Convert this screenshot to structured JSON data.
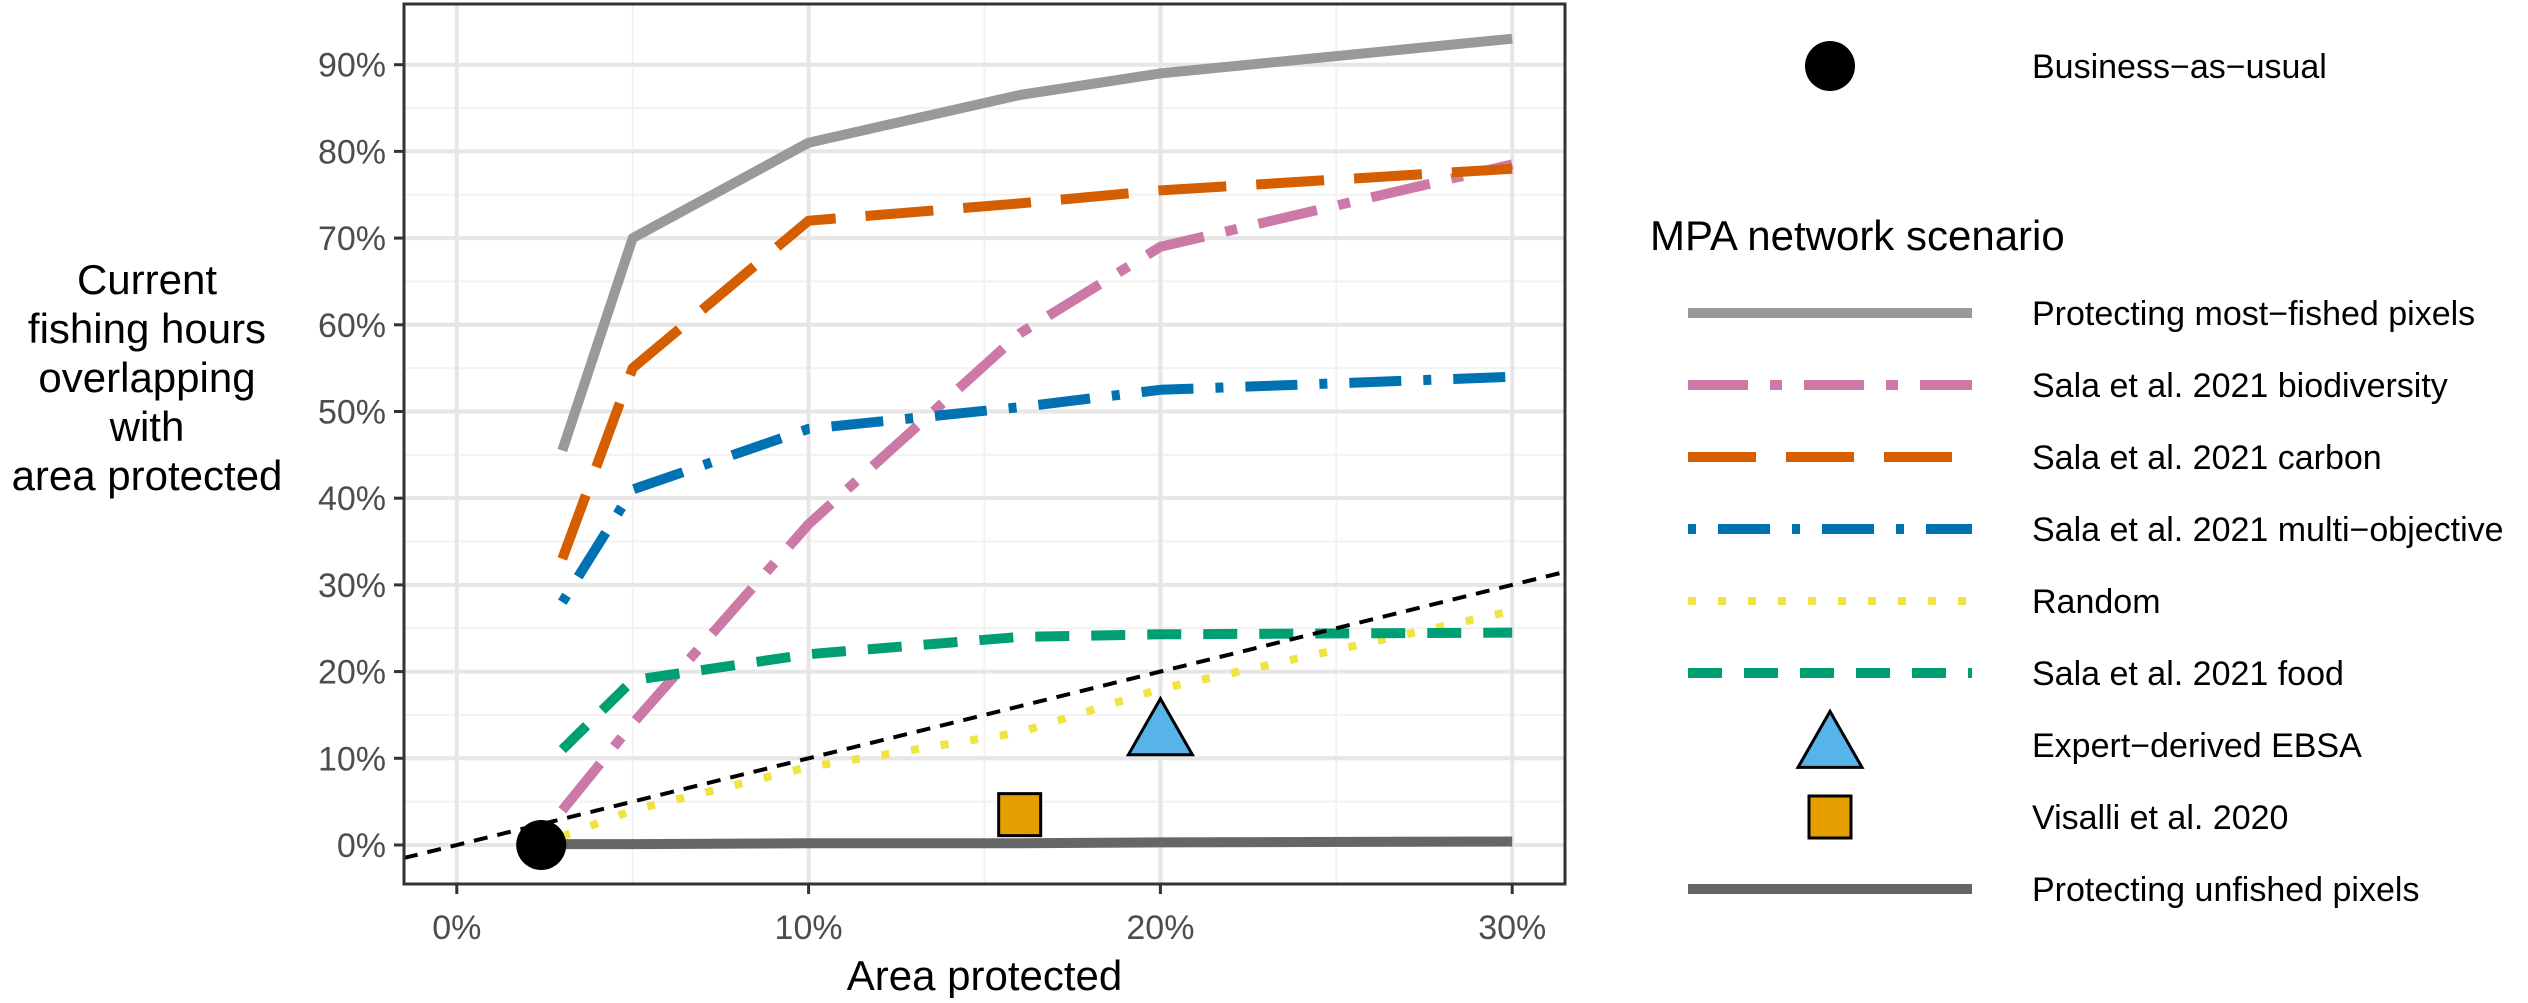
{
  "chart_data": {
    "type": "line",
    "xlabel": "Area protected",
    "ylabel_lines": [
      "Current",
      "fishing hours",
      "overlapping",
      "with",
      "area protected"
    ],
    "xlim": [
      -1.5,
      31.5
    ],
    "ylim": [
      -4.5,
      97
    ],
    "x_ticks": [
      0,
      10,
      20,
      30
    ],
    "x_tick_labels": [
      "0%",
      "10%",
      "20%",
      "30%"
    ],
    "y_ticks": [
      0,
      10,
      20,
      30,
      40,
      50,
      60,
      70,
      80,
      90
    ],
    "y_tick_labels": [
      "0%",
      "10%",
      "20%",
      "30%",
      "40%",
      "50%",
      "60%",
      "70%",
      "80%",
      "90%"
    ],
    "grid": true,
    "legend_title": "MPA network scenario",
    "legend_position": "right",
    "series": [
      {
        "name": "Protecting most−fished pixels",
        "color": "#999999",
        "dash": "solid",
        "x": [
          3,
          5,
          10,
          16,
          20,
          30
        ],
        "y": [
          45.5,
          70,
          81,
          86.5,
          89,
          93
        ]
      },
      {
        "name": "Sala et al. 2021 biodiversity",
        "color": "#CC79A7",
        "dash": "dashdot",
        "x": [
          3,
          5,
          10,
          16,
          20,
          30
        ],
        "y": [
          4,
          14,
          37,
          59,
          69,
          78.5
        ]
      },
      {
        "name": "Sala et al. 2021 carbon",
        "color": "#D55E00",
        "dash": "longdash",
        "x": [
          3,
          5,
          10,
          16,
          20,
          30
        ],
        "y": [
          33,
          55,
          72,
          74,
          75.5,
          78
        ]
      },
      {
        "name": "Sala et al. 2021 multi−objective",
        "color": "#0072B2",
        "dash": "dotdash",
        "x": [
          3,
          5,
          10,
          16,
          20,
          30
        ],
        "y": [
          28,
          41,
          48,
          50.5,
          52.5,
          54
        ]
      },
      {
        "name": "Random",
        "color": "#F0E442",
        "dash": "dotted",
        "x": [
          3,
          5,
          10,
          16,
          20,
          30
        ],
        "y": [
          1,
          4,
          9,
          13,
          18,
          27
        ]
      },
      {
        "name": "Sala et al. 2021 food",
        "color": "#009E73",
        "dash": "dashed",
        "x": [
          3,
          5,
          10,
          16,
          20,
          30
        ],
        "y": [
          11,
          19,
          22,
          24,
          24.3,
          24.5
        ]
      },
      {
        "name": "Protecting unfished pixels",
        "color": "#666666",
        "dash": "solid",
        "x": [
          3,
          5,
          10,
          16,
          20,
          30
        ],
        "y": [
          0.1,
          0.1,
          0.2,
          0.2,
          0.3,
          0.4
        ]
      }
    ],
    "reference_line": {
      "slope": 1,
      "intercept": 0,
      "x_range": [
        -1.5,
        31.5
      ],
      "color": "#000000",
      "dash": "dashed"
    },
    "points": [
      {
        "name": "Business−as−usual",
        "shape": "circle",
        "color": "#000000",
        "x": 2.4,
        "y": 0
      },
      {
        "name": "Expert−derived EBSA",
        "shape": "triangle",
        "color": "#56B4E9",
        "x": 20,
        "y": 13
      },
      {
        "name": "Visalli et al. 2020",
        "shape": "square",
        "color": "#E69F00",
        "x": 16,
        "y": 3.5
      }
    ],
    "legend_top_entries": [
      "Business−as−usual"
    ],
    "legend_entries": [
      "Protecting most−fished pixels",
      "Sala et al. 2021 biodiversity",
      "Sala et al. 2021 carbon",
      "Sala et al. 2021 multi−objective",
      "Random",
      "Sala et al. 2021 food",
      "Expert−derived EBSA",
      "Visalli et al. 2020",
      "Protecting unfished pixels"
    ]
  }
}
